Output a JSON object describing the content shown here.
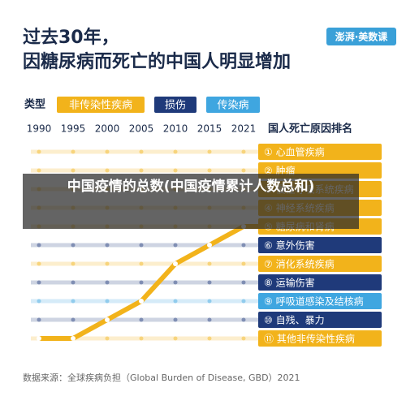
{
  "logo": "澎湃·美数课",
  "overlay": "中国疫情的总数(中国疫情累计人数总和)",
  "source": "数据来源：全球疾病负担（Global Burden of Disease, GBD）2021",
  "chart_data": {
    "type": "bump",
    "title": [
      "过去30年，",
      "因糖尿病而死亡的中国人明显增加"
    ],
    "legend_title": "类型",
    "legend": [
      {
        "name": "非传染性疾病",
        "color": "#f2b31b"
      },
      {
        "name": "损伤",
        "color": "#1f3a7a"
      },
      {
        "name": "传染病",
        "color": "#3fa6e0"
      }
    ],
    "categories": [
      "1990",
      "1995",
      "2000",
      "2005",
      "2010",
      "2015",
      "2021"
    ],
    "ranking_title": "国人死亡原因排名",
    "rankings": [
      {
        "label": "① 心血管疾病",
        "type": 0
      },
      {
        "label": "② 肿瘤",
        "type": 0
      },
      {
        "label": "③ 慢性呼吸系统疾病",
        "type": 0
      },
      {
        "label": "④ 神经系统疾病",
        "type": 0
      },
      {
        "label": "⑤ 糖尿病和肾病",
        "type": 0
      },
      {
        "label": "⑥ 意外伤害",
        "type": 1
      },
      {
        "label": "⑦ 消化系统疾病",
        "type": 0
      },
      {
        "label": "⑧ 运输伤害",
        "type": 1
      },
      {
        "label": "⑨ 呼吸道感染及结核病",
        "type": 2
      },
      {
        "label": "⑩ 自残、暴力",
        "type": 1
      },
      {
        "label": "⑪ 其他非传染性疾病",
        "type": 0
      }
    ],
    "values": [
      11,
      11,
      10,
      9,
      7,
      6,
      5
    ],
    "color": "#f2b31b",
    "ylim": [
      11,
      1
    ]
  }
}
